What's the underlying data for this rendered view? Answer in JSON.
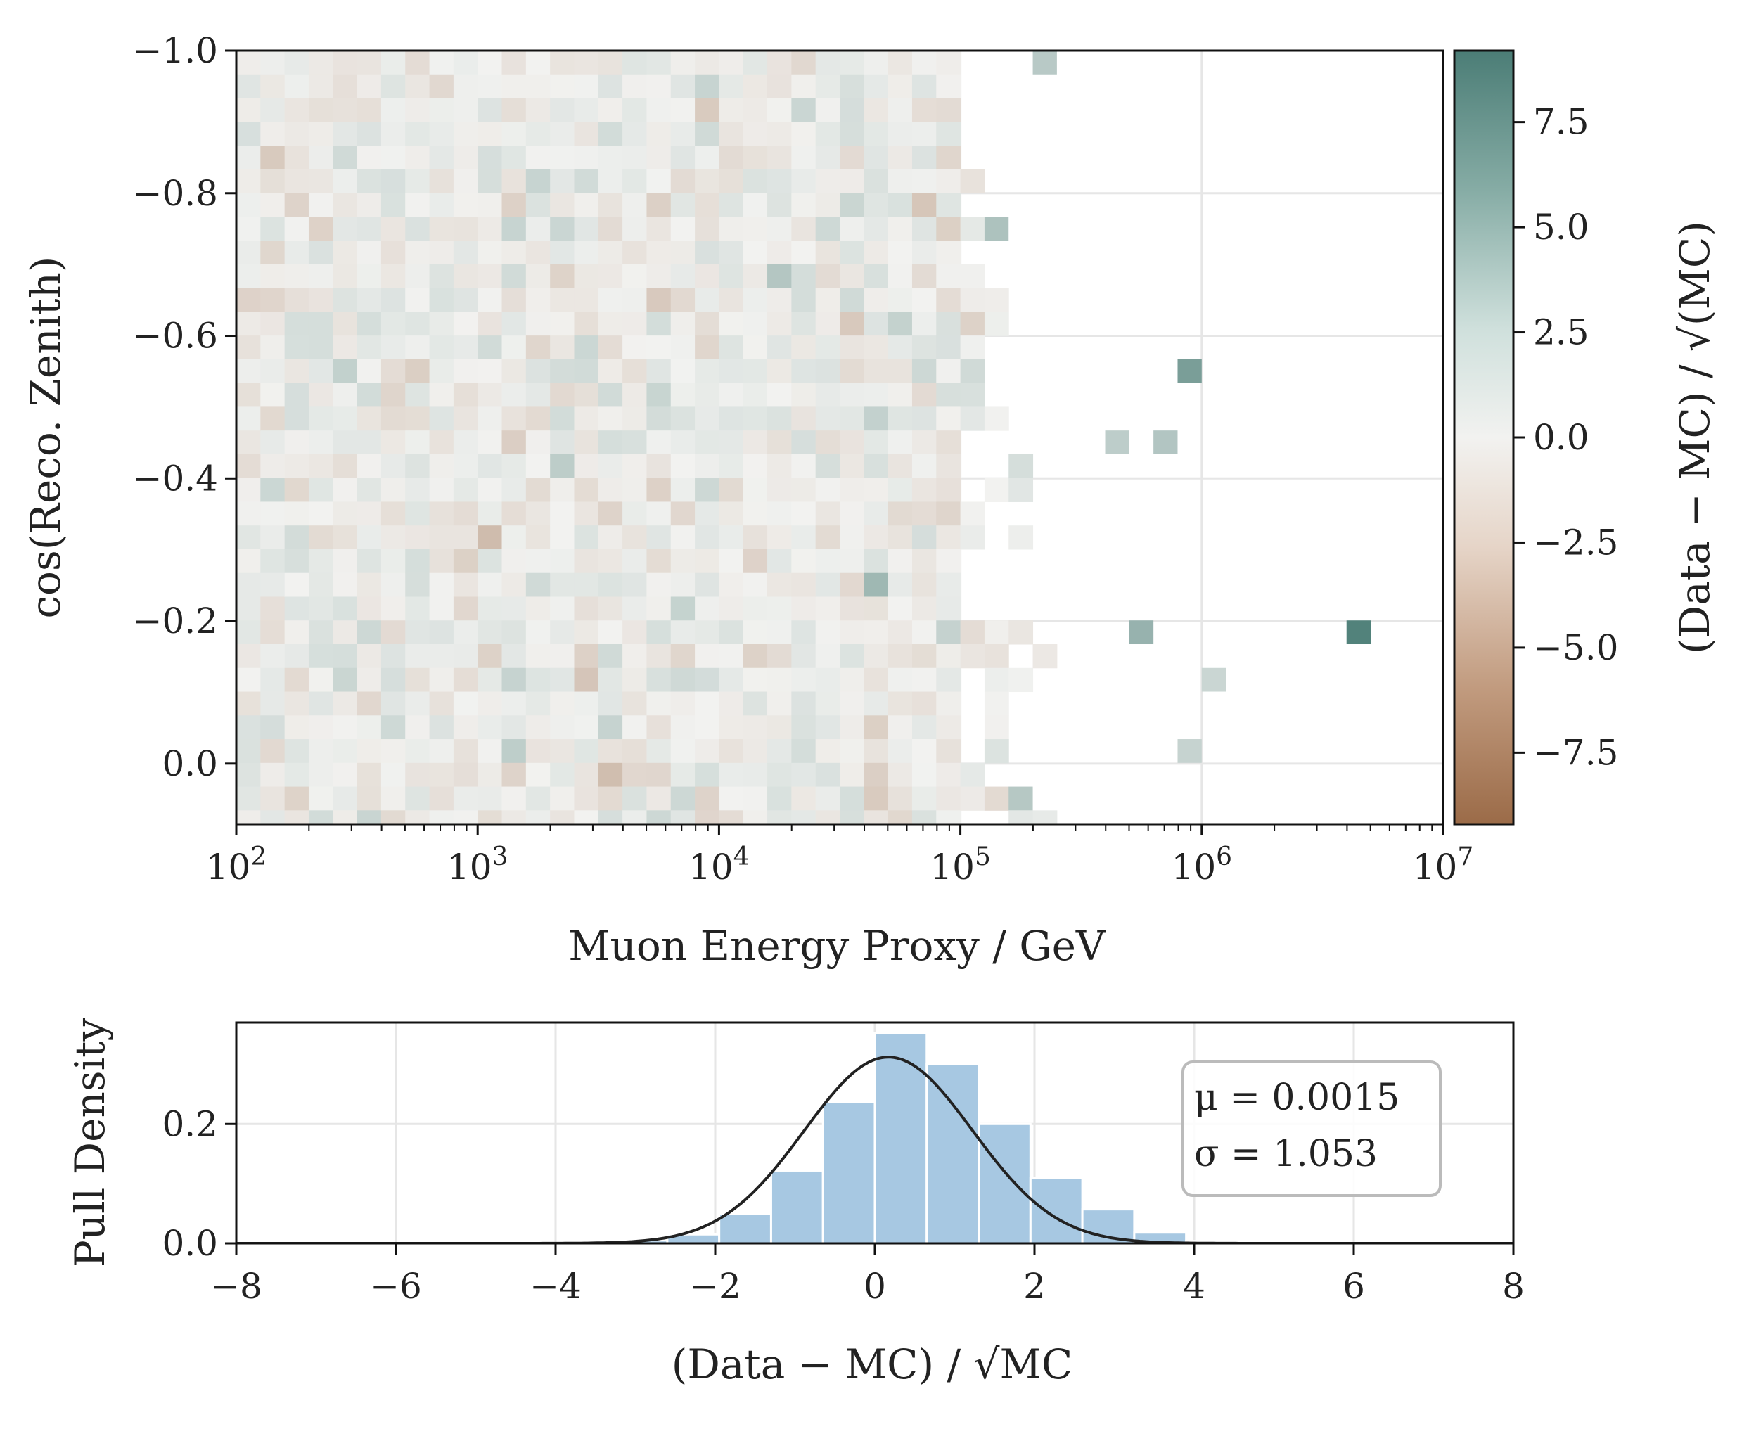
{
  "chart_data": [
    {
      "type": "heatmap",
      "xlabel": "Muon Energy Proxy / GeV",
      "ylabel": "cos(Reco. Zenith)",
      "xscale": "log",
      "xlim": [
        100,
        10000000
      ],
      "ylim": [
        0.085,
        -1.0
      ],
      "x_tick_labels": [
        {
          "base": "10",
          "exp": "2"
        },
        {
          "base": "10",
          "exp": "3"
        },
        {
          "base": "10",
          "exp": "4"
        },
        {
          "base": "10",
          "exp": "5"
        },
        {
          "base": "10",
          "exp": "6"
        },
        {
          "base": "10",
          "exp": "7"
        }
      ],
      "y_ticks": [
        -1.0,
        -0.8,
        -0.6,
        -0.4,
        -0.2,
        0.0
      ],
      "y_tick_labels": [
        "−1.0",
        "−0.8",
        "−0.6",
        "−0.4",
        "−0.2",
        "0.0"
      ],
      "bins": {
        "x_bins_per_decade": 10,
        "y_bin_width": 0.0333,
        "dense_region_x_max": 100000
      },
      "notable_cells": [
        {
          "x": 230000,
          "y": -0.985,
          "value": 3.2
        },
        {
          "x": 150000,
          "y": -0.76,
          "value": 3.8
        },
        {
          "x": 940000,
          "y": -0.545,
          "value": 6.6
        },
        {
          "x": 470000,
          "y": -0.445,
          "value": 2.9
        },
        {
          "x": 750000,
          "y": -0.445,
          "value": 3.5
        },
        {
          "x": 46000,
          "y": -0.265,
          "value": 4.6
        },
        {
          "x": 590000,
          "y": -0.195,
          "value": 5.0
        },
        {
          "x": 4700000,
          "y": -0.195,
          "value": 8.8
        },
        {
          "x": 1200000,
          "y": -0.115,
          "value": 2.2
        },
        {
          "x": 940000,
          "y": -0.005,
          "value": 2.4
        },
        {
          "x": 180000,
          "y": 0.04,
          "value": 3.3
        }
      ],
      "colorbar": {
        "label": "(Data − MC) / √(MC)",
        "range": [
          -9.2,
          9.2
        ],
        "ticks": [
          7.5,
          5.0,
          2.5,
          0.0,
          -2.5,
          -5.0,
          -7.5
        ],
        "tick_labels": [
          "7.5",
          "5.0",
          "2.5",
          "0.0",
          "−2.5",
          "−5.0",
          "−7.5"
        ],
        "colors": {
          "high": "#4b7d76",
          "mid": "#f2f2f0",
          "low": "#9b6b48"
        }
      }
    },
    {
      "type": "bar",
      "xlabel": "(Data − MC) / √MC",
      "ylabel": "Pull Density",
      "xlim": [
        -8,
        8
      ],
      "ylim": [
        0,
        0.37
      ],
      "x_ticks": [
        -8,
        -6,
        -4,
        -2,
        0,
        2,
        4,
        6,
        8
      ],
      "x_tick_labels": [
        "−8",
        "−6",
        "−4",
        "−2",
        "0",
        "2",
        "4",
        "6",
        "8"
      ],
      "y_ticks": [
        0.0,
        0.2
      ],
      "y_tick_labels": [
        "0.0",
        "0.2"
      ],
      "bin_width": 0.65,
      "bin_edges_start": -3.25,
      "values": [
        0.005,
        0.015,
        0.05,
        0.122,
        0.237,
        0.352,
        0.3,
        0.2,
        0.11,
        0.057,
        0.018,
        0.004
      ],
      "fit": {
        "mu": 0.0015,
        "sigma": 1.053,
        "peak_x": 0.17,
        "peak_y": 0.312
      },
      "stats": {
        "mu_label": "μ = 0.0015",
        "sigma_label": "σ = 1.053"
      },
      "colors": {
        "bars": "#a7c8e2",
        "fit": "#222222"
      }
    }
  ]
}
